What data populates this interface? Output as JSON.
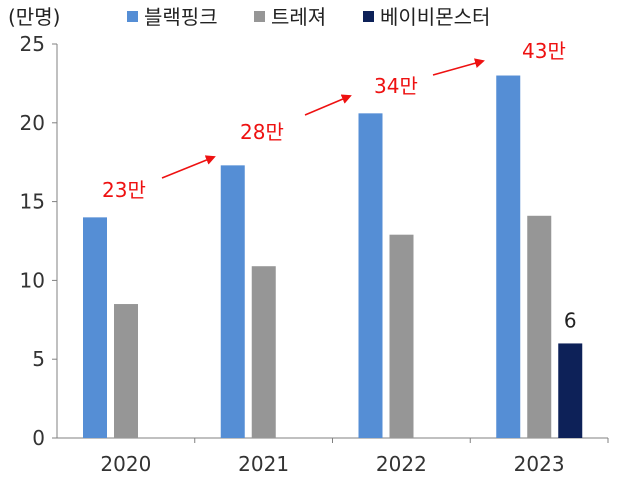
{
  "chart_data": {
    "type": "bar",
    "unit_label": "(만명)",
    "categories": [
      "2020",
      "2021",
      "2022",
      "2023"
    ],
    "series": [
      {
        "name": "블랙핑크",
        "values": [
          14.0,
          17.3,
          20.6,
          23.0
        ],
        "color": "#558ED5"
      },
      {
        "name": "트레져",
        "values": [
          8.5,
          10.9,
          12.9,
          14.1
        ],
        "color": "#969696"
      },
      {
        "name": "베이비몬스터",
        "values": [
          null,
          null,
          null,
          6
        ],
        "color": "#0D2158"
      }
    ],
    "ylim": [
      0,
      25
    ],
    "yticks": [
      "0",
      "5",
      "10",
      "15",
      "20",
      "25"
    ],
    "legend_position": "top",
    "grid": false,
    "data_labels": [
      {
        "series": "베이비몬스터",
        "category": "2023",
        "text": "6"
      }
    ],
    "annotations": {
      "color": "#EE1111",
      "labels": [
        "23만",
        "28만",
        "34만",
        "43만"
      ],
      "arrows": 3
    }
  }
}
